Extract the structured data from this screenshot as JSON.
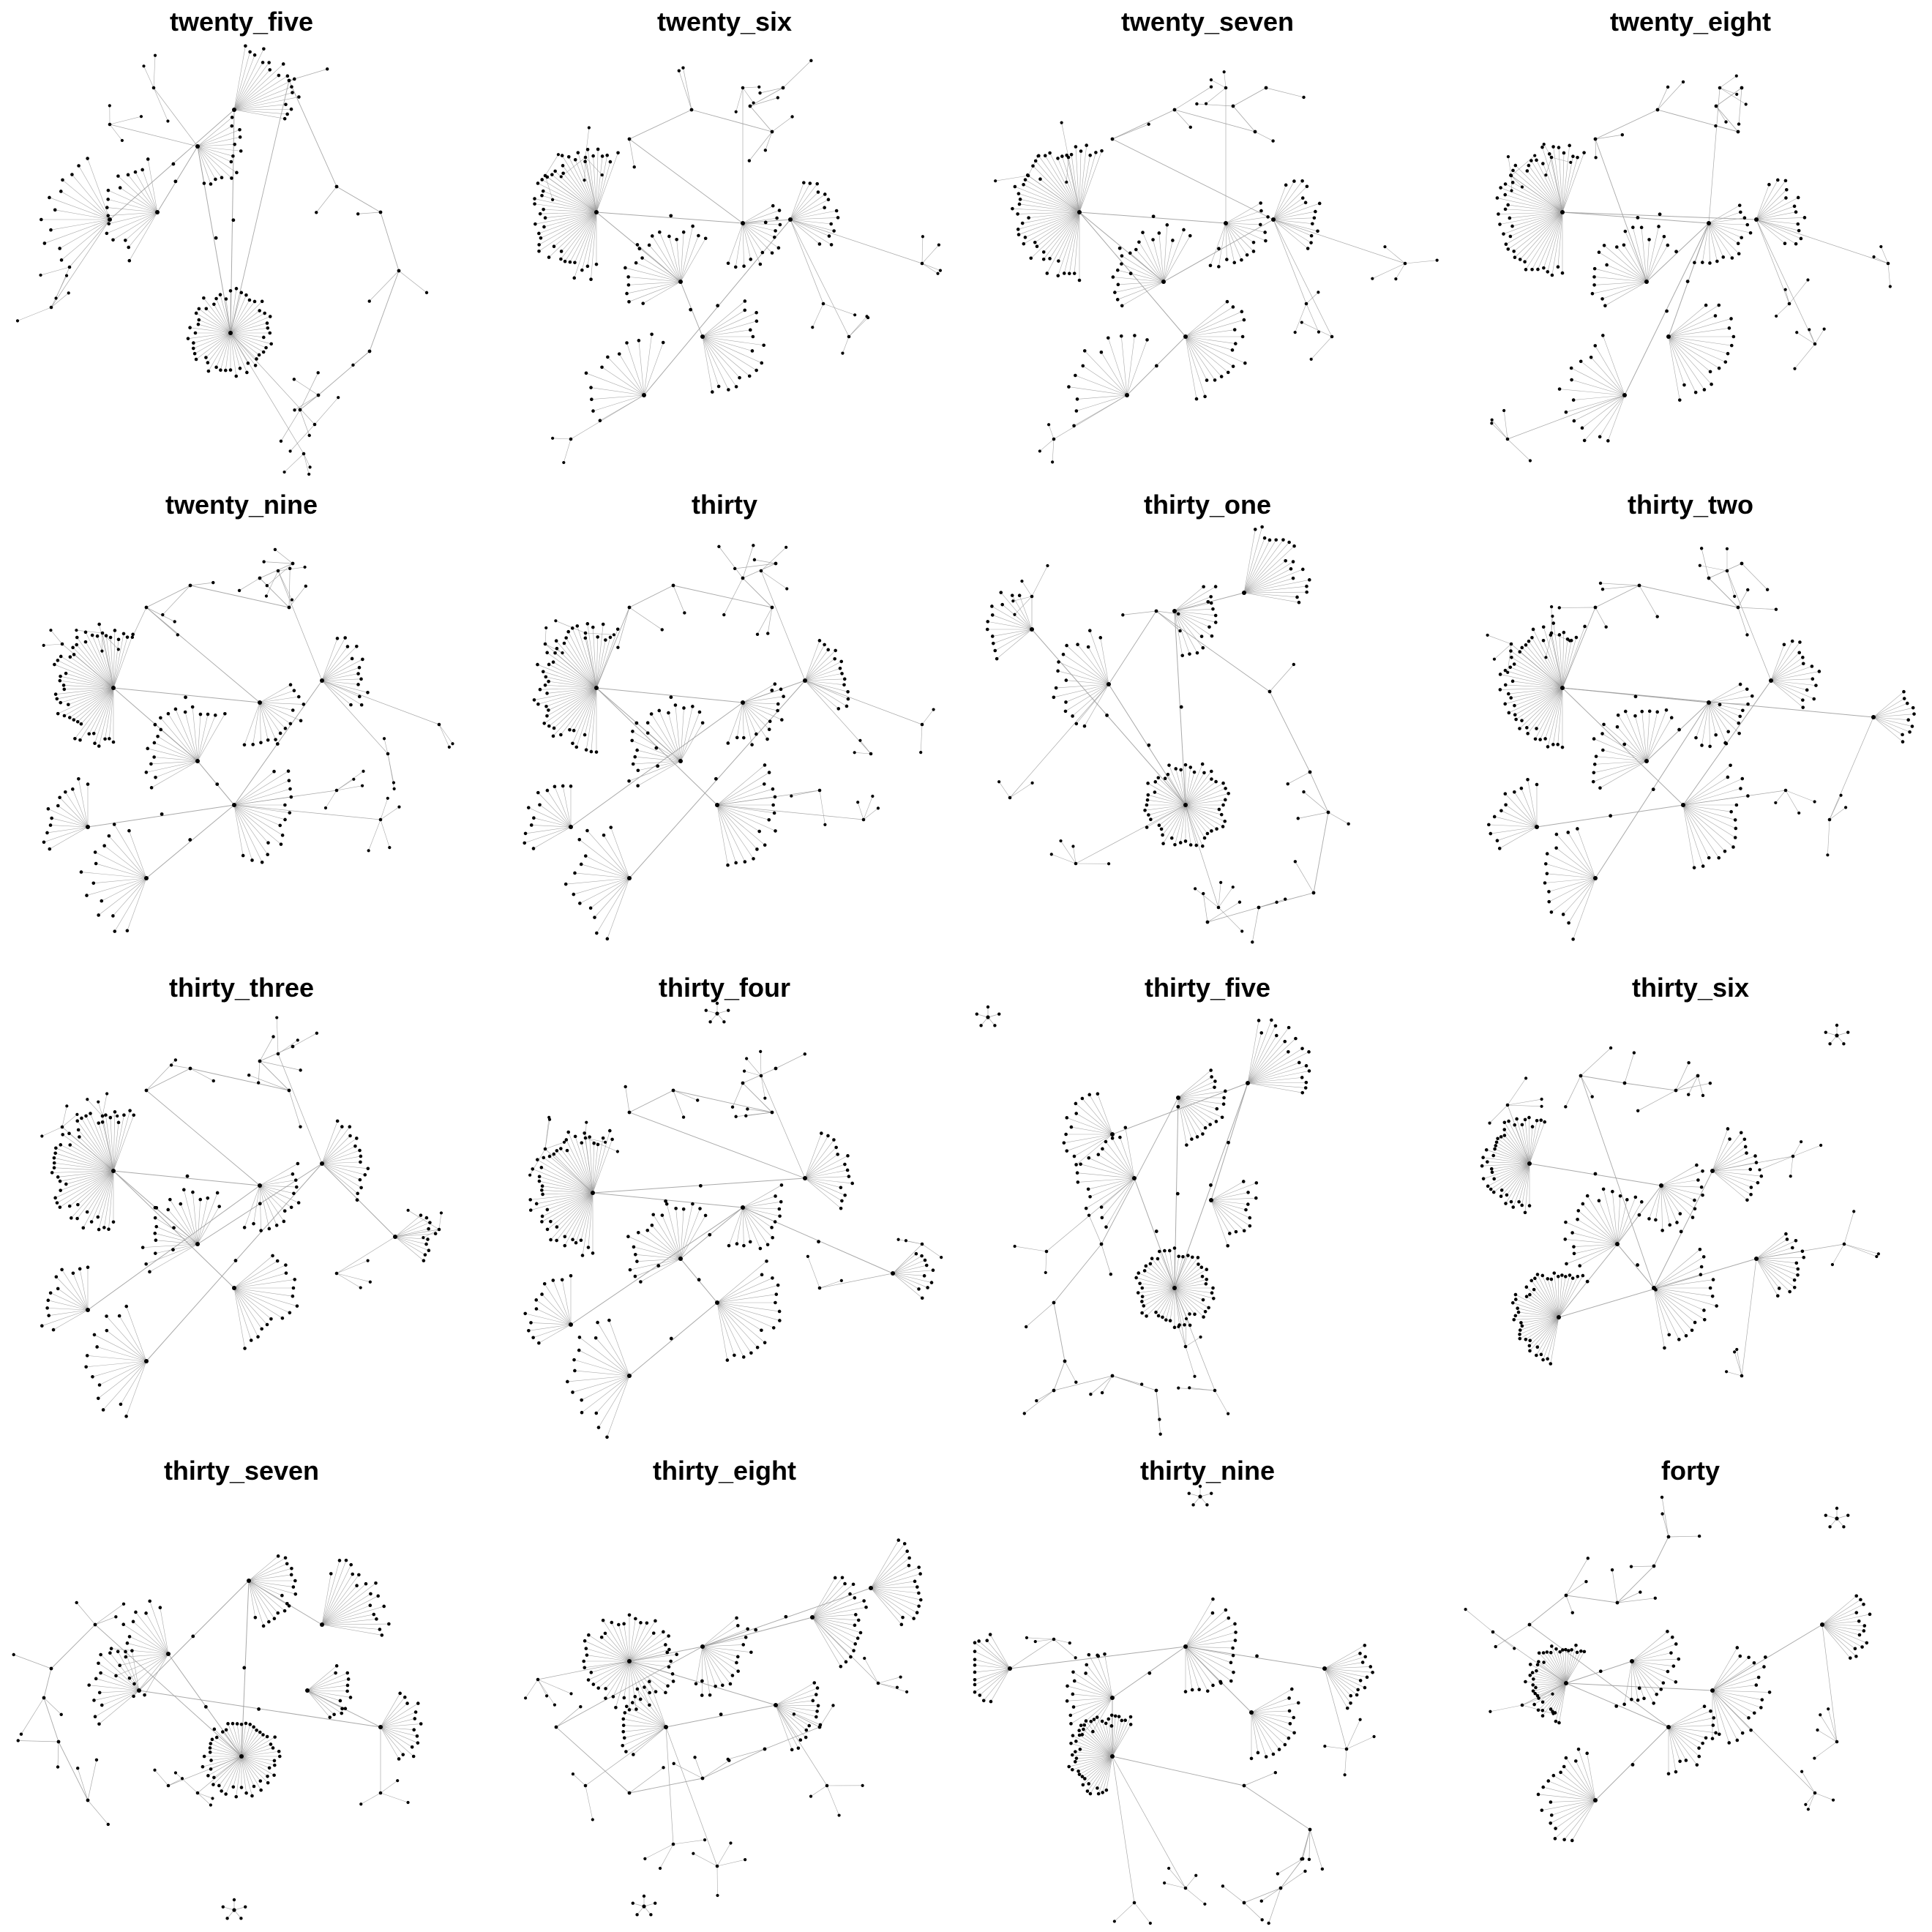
{
  "panels": [
    {
      "title": "twenty_five",
      "layout": "A"
    },
    {
      "title": "twenty_six",
      "layout": "B"
    },
    {
      "title": "twenty_seven",
      "layout": "B"
    },
    {
      "title": "twenty_eight",
      "layout": "B2"
    },
    {
      "title": "twenty_nine",
      "layout": "C"
    },
    {
      "title": "thirty",
      "layout": "C"
    },
    {
      "title": "thirty_one",
      "layout": "A2"
    },
    {
      "title": "thirty_two",
      "layout": "C2"
    },
    {
      "title": "thirty_three",
      "layout": "C3"
    },
    {
      "title": "thirty_four",
      "layout": "C4",
      "extra_component": "top-center"
    },
    {
      "title": "thirty_five",
      "layout": "D",
      "extra_component": "top-left"
    },
    {
      "title": "thirty_six",
      "layout": "E",
      "extra_component": "top-right"
    },
    {
      "title": "thirty_seven",
      "layout": "F",
      "extra_component": "bottom-center"
    },
    {
      "title": "thirty_eight",
      "layout": "G",
      "extra_component": "bottom-left"
    },
    {
      "title": "thirty_nine",
      "layout": "H",
      "extra_component": "top-center"
    },
    {
      "title": "forty",
      "layout": "I",
      "extra_component": "top-right"
    }
  ],
  "style": {
    "node_color": "#000000",
    "edge_color": "#9a9a9a",
    "background": "#ffffff"
  }
}
